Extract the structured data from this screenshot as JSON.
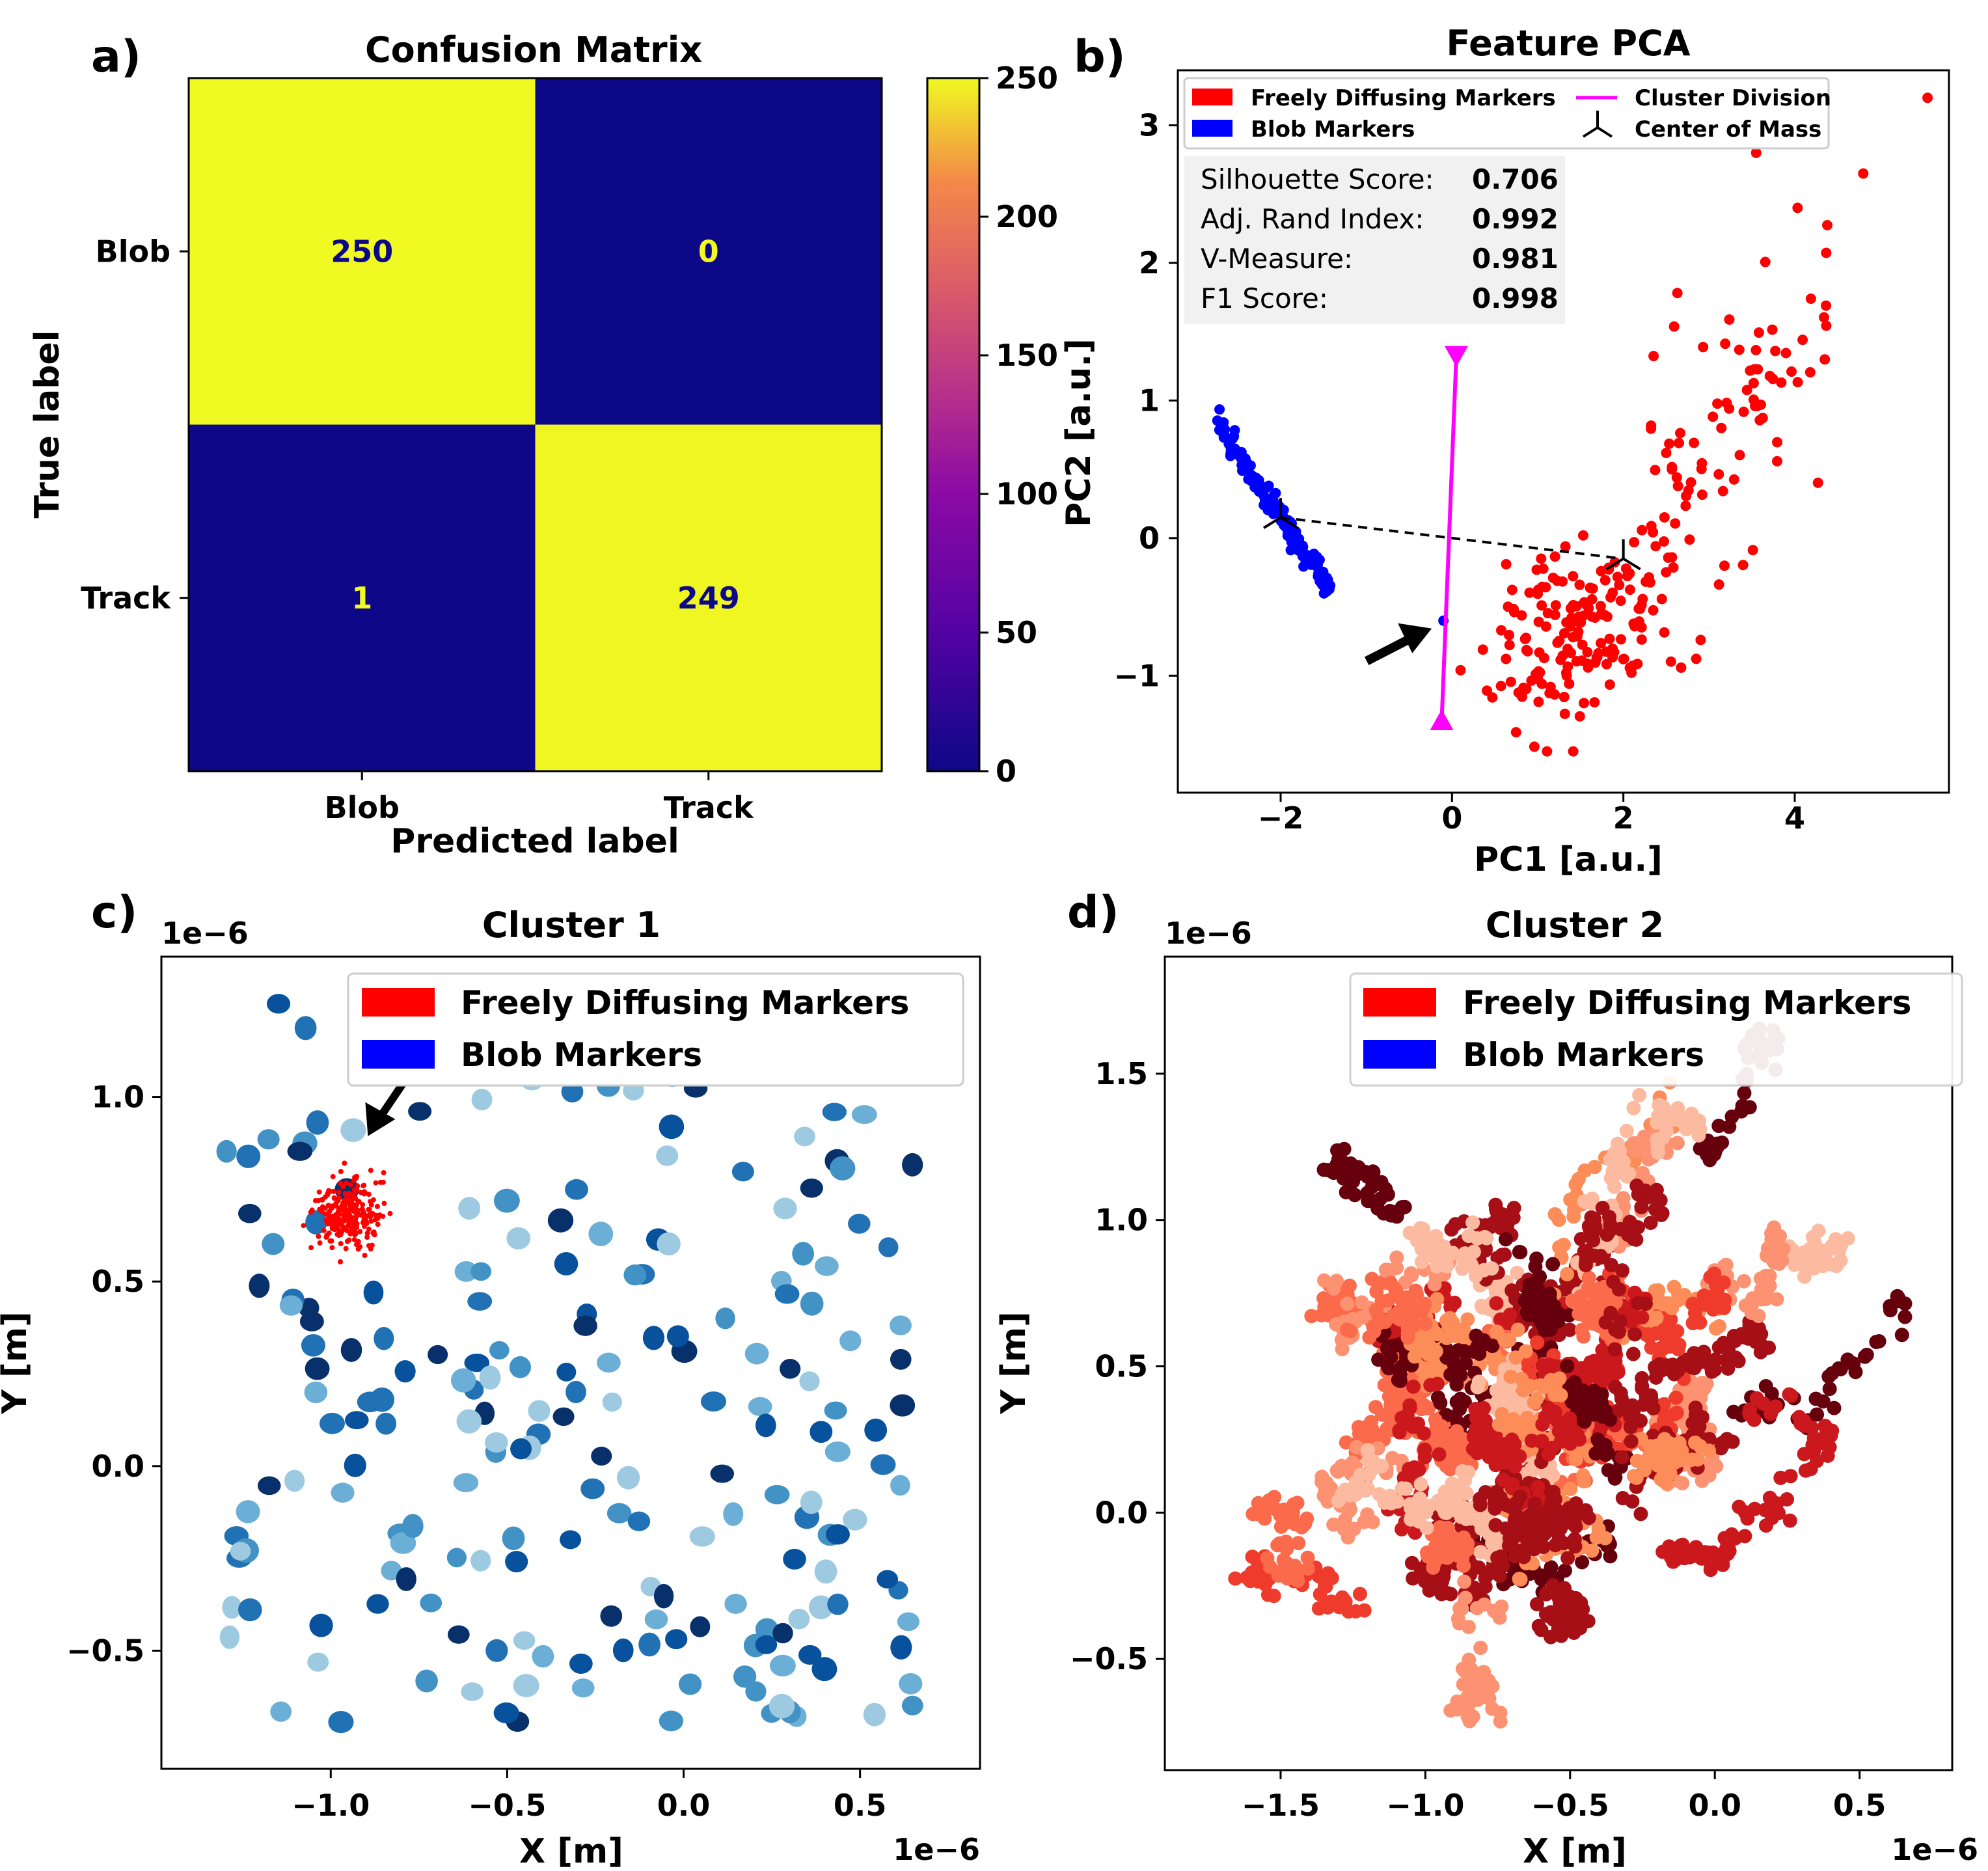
{
  "panels": {
    "a": {
      "label": "a)"
    },
    "b": {
      "label": "b)"
    },
    "c": {
      "label": "c)"
    },
    "d": {
      "label": "d)"
    }
  },
  "chart_data": [
    {
      "type": "heatmap",
      "panel": "a",
      "title": "Confusion Matrix",
      "xlabel": "Predicted label",
      "ylabel": "True label",
      "x_categories": [
        "Blob",
        "Track"
      ],
      "y_categories": [
        "Blob",
        "Track"
      ],
      "values": [
        [
          250,
          0
        ],
        [
          1,
          249
        ]
      ],
      "colormap": "plasma",
      "colorbar": {
        "range": [
          0,
          250
        ],
        "ticks": [
          0,
          50,
          100,
          150,
          200,
          250
        ]
      },
      "colors": {
        "high": "#f0f921",
        "low": "#0d0887"
      }
    },
    {
      "type": "scatter",
      "panel": "b",
      "title": "Feature PCA",
      "xlabel": "PC1 [a.u.]",
      "ylabel": "PC2 [a.u.]",
      "xlim": [
        -3.2,
        5.8
      ],
      "ylim": [
        -1.85,
        3.4
      ],
      "xticks": [
        -2,
        0,
        2,
        4
      ],
      "xtick_labels": [
        "−2",
        "0",
        "2",
        "4"
      ],
      "yticks": [
        -1,
        0,
        1,
        2,
        3
      ],
      "ytick_labels": [
        "−1",
        "0",
        "1",
        "2",
        "3"
      ],
      "legend": {
        "placement": "top",
        "entries": [
          {
            "label": "Freely Diffusing Markers",
            "color": "#ff0000",
            "kind": "patch"
          },
          {
            "label": "Blob Markers",
            "color": "#0000ff",
            "kind": "patch"
          },
          {
            "label": "Cluster Division",
            "color": "#ff00ff",
            "kind": "line"
          },
          {
            "label": "Center of Mass",
            "color": "#000000",
            "kind": "marker"
          }
        ]
      },
      "metrics": [
        {
          "name": "Silhouette  Score:",
          "value": "0.706"
        },
        {
          "name": "Adj.  Rand Index:",
          "value": "0.992"
        },
        {
          "name": "V-Measure:",
          "value": "0.981"
        },
        {
          "name": "F1 Score:",
          "value": "0.998"
        }
      ],
      "centers_of_mass": [
        [
          -2.0,
          0.15
        ],
        [
          2.0,
          -0.15
        ]
      ],
      "cluster_division": {
        "start": [
          0.05,
          1.32
        ],
        "end": [
          -0.12,
          -1.32
        ]
      },
      "misclassified_point": [
        -0.1,
        -0.6
      ],
      "blob_points": {
        "count": 140,
        "pc1_range": [
          -2.75,
          -1.4
        ],
        "trend": "negative-linear",
        "color": "#0000ff"
      },
      "freely_diffusing_points": {
        "count": 250,
        "pc1_range": [
          0.05,
          5.5
        ],
        "pc2_range": [
          -1.6,
          3.2
        ],
        "color": "#ff0000"
      },
      "outliers": [
        [
          5.55,
          3.2
        ],
        [
          4.8,
          2.65
        ],
        [
          3.55,
          2.8
        ]
      ]
    },
    {
      "type": "scatter",
      "panel": "c",
      "title": "Cluster 1",
      "xlabel": "X [m]",
      "ylabel": "Y [m]",
      "x_scale_label": "1e−6",
      "y_scale_label": "1e−6",
      "xlim": [
        -1.48,
        0.84
      ],
      "ylim": [
        -0.82,
        1.38
      ],
      "xticks": [
        -1.0,
        -0.5,
        0.0,
        0.5
      ],
      "xtick_labels": [
        "−1.0",
        "−0.5",
        "0.0",
        "0.5"
      ],
      "yticks": [
        -0.5,
        0.0,
        0.5,
        1.0
      ],
      "ytick_labels": [
        "−0.5",
        "0.0",
        "0.5",
        "1.0"
      ],
      "legend": {
        "placement": "top-right",
        "entries": [
          {
            "label": "Freely Diffusing Markers",
            "color": "#ff0000"
          },
          {
            "label": "Blob Markers",
            "color": "#0000ff"
          }
        ]
      },
      "blob_clusters": {
        "count": 230,
        "x_range": [
          -1.3,
          0.65
        ],
        "y_range": [
          -0.72,
          1.28
        ],
        "colormap": "Blues"
      },
      "red_cluster": {
        "center": [
          -0.95,
          0.7
        ],
        "color": "#ff0000"
      }
    },
    {
      "type": "scatter",
      "panel": "d",
      "title": "Cluster 2",
      "xlabel": "X [m]",
      "ylabel": "Y [m]",
      "x_scale_label": "1e−6",
      "y_scale_label": "1e−6",
      "xlim": [
        -1.9,
        0.82
      ],
      "ylim": [
        -0.88,
        1.9
      ],
      "xticks": [
        -1.5,
        -1.0,
        -0.5,
        0.0,
        0.5
      ],
      "xtick_labels": [
        "−1.5",
        "−1.0",
        "−0.5",
        "0.0",
        "0.5"
      ],
      "yticks": [
        -0.5,
        0.0,
        0.5,
        1.0,
        1.5
      ],
      "ytick_labels": [
        "−0.5",
        "0.0",
        "0.5",
        "1.0",
        "1.5"
      ],
      "legend": {
        "placement": "top-right",
        "entries": [
          {
            "label": "Freely Diffusing Markers",
            "color": "#ff0000"
          },
          {
            "label": "Blob Markers",
            "color": "#0000ff"
          }
        ]
      },
      "tracks": {
        "center": [
          -0.55,
          0.45
        ],
        "x_range": [
          -1.7,
          0.7
        ],
        "y_range": [
          -0.75,
          1.7
        ],
        "colormap": "Reds"
      }
    }
  ]
}
